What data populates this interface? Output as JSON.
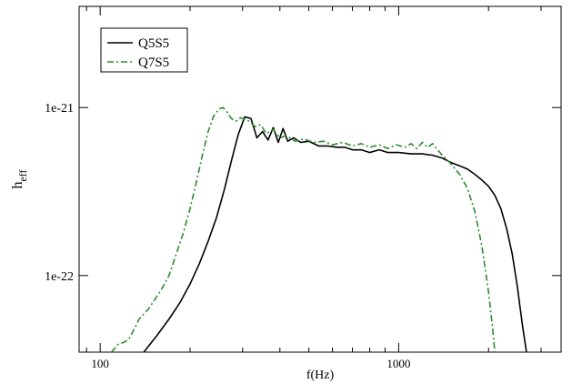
{
  "chart_data": {
    "type": "line",
    "title": "",
    "xlabel": "f(Hz)",
    "ylabel": {
      "main": "h",
      "sub": "eff"
    },
    "x_scale": "log",
    "y_scale": "log",
    "xlim": [
      85,
      3500
    ],
    "ylim": [
      3.5e-23,
      4e-21
    ],
    "x_ticks": [
      {
        "value": 100,
        "label": "100"
      },
      {
        "value": 1000,
        "label": "1000"
      }
    ],
    "y_ticks": [
      {
        "value": 1e-22,
        "label": "1e-22"
      },
      {
        "value": 1e-21,
        "label": "1e-21"
      }
    ],
    "grid": false,
    "legend_position": "top-left",
    "series": [
      {
        "name": "Q5S5",
        "color": "#000000",
        "dash": "solid",
        "points": [
          [
            140,
            3.5e-23
          ],
          [
            155,
            4.4e-23
          ],
          [
            170,
            5.5e-23
          ],
          [
            185,
            6.9e-23
          ],
          [
            200,
            8.9e-23
          ],
          [
            215,
            1.18e-22
          ],
          [
            230,
            1.6e-22
          ],
          [
            245,
            2.2e-22
          ],
          [
            260,
            3.2e-22
          ],
          [
            275,
            4.8e-22
          ],
          [
            290,
            6.9e-22
          ],
          [
            305,
            8.8e-22
          ],
          [
            320,
            8.6e-22
          ],
          [
            335,
            6.6e-22
          ],
          [
            350,
            7.2e-22
          ],
          [
            365,
            6.4e-22
          ],
          [
            380,
            7.6e-22
          ],
          [
            395,
            6.2e-22
          ],
          [
            410,
            7.5e-22
          ],
          [
            425,
            6.3e-22
          ],
          [
            445,
            6.6e-22
          ],
          [
            470,
            6.2e-22
          ],
          [
            500,
            6.3e-22
          ],
          [
            540,
            5.9e-22
          ],
          [
            580,
            5.9e-22
          ],
          [
            620,
            5.8e-22
          ],
          [
            660,
            5.8e-22
          ],
          [
            700,
            5.6e-22
          ],
          [
            750,
            5.6e-22
          ],
          [
            800,
            5.4e-22
          ],
          [
            860,
            5.6e-22
          ],
          [
            920,
            5.4e-22
          ],
          [
            1000,
            5.4e-22
          ],
          [
            1100,
            5.3e-22
          ],
          [
            1200,
            5.3e-22
          ],
          [
            1300,
            5.2e-22
          ],
          [
            1400,
            5e-22
          ],
          [
            1500,
            4.7e-22
          ],
          [
            1600,
            4.5e-22
          ],
          [
            1700,
            4.3e-22
          ],
          [
            1800,
            4e-22
          ],
          [
            1900,
            3.7e-22
          ],
          [
            2000,
            3.4e-22
          ],
          [
            2100,
            3e-22
          ],
          [
            2200,
            2.5e-22
          ],
          [
            2300,
            1.9e-22
          ],
          [
            2400,
            1.35e-22
          ],
          [
            2500,
            8.5e-23
          ],
          [
            2600,
            5e-23
          ],
          [
            2680,
            3.5e-23
          ]
        ]
      },
      {
        "name": "Q7S5",
        "color": "#2e8b2e",
        "dash": "dash-dot",
        "points": [
          [
            109,
            3.5e-23
          ],
          [
            115,
            3.9e-23
          ],
          [
            120,
            4e-23
          ],
          [
            125,
            4.2e-23
          ],
          [
            130,
            4.8e-23
          ],
          [
            135,
            5.5e-23
          ],
          [
            140,
            5.9e-23
          ],
          [
            145,
            6.3e-23
          ],
          [
            150,
            6.9e-23
          ],
          [
            160,
            8.2e-23
          ],
          [
            170,
            1e-22
          ],
          [
            180,
            1.35e-22
          ],
          [
            190,
            1.8e-22
          ],
          [
            200,
            2.5e-22
          ],
          [
            210,
            3.6e-22
          ],
          [
            220,
            5.2e-22
          ],
          [
            230,
            7.2e-22
          ],
          [
            240,
            8.9e-22
          ],
          [
            250,
            9.8e-22
          ],
          [
            258,
            1e-21
          ],
          [
            265,
            9.5e-22
          ],
          [
            275,
            8.6e-22
          ],
          [
            285,
            8.3e-22
          ],
          [
            295,
            8.7e-22
          ],
          [
            305,
            8.5e-22
          ],
          [
            315,
            8.3e-22
          ],
          [
            330,
            7.7e-22
          ],
          [
            345,
            7.9e-22
          ],
          [
            360,
            7e-22
          ],
          [
            380,
            7.4e-22
          ],
          [
            400,
            6.6e-22
          ],
          [
            420,
            6.8e-22
          ],
          [
            450,
            6.3e-22
          ],
          [
            480,
            6.5e-22
          ],
          [
            520,
            6.2e-22
          ],
          [
            560,
            6.3e-22
          ],
          [
            600,
            6e-22
          ],
          [
            650,
            6.2e-22
          ],
          [
            700,
            5.9e-22
          ],
          [
            750,
            6.1e-22
          ],
          [
            800,
            5.8e-22
          ],
          [
            860,
            6e-22
          ],
          [
            920,
            5.7e-22
          ],
          [
            980,
            6e-22
          ],
          [
            1050,
            5.8e-22
          ],
          [
            1100,
            6.1e-22
          ],
          [
            1150,
            5.7e-22
          ],
          [
            1200,
            6.2e-22
          ],
          [
            1250,
            5.8e-22
          ],
          [
            1300,
            6.1e-22
          ],
          [
            1350,
            5.6e-22
          ],
          [
            1400,
            5.2e-22
          ],
          [
            1450,
            4.9e-22
          ],
          [
            1500,
            4.6e-22
          ],
          [
            1600,
            4e-22
          ],
          [
            1700,
            3.3e-22
          ],
          [
            1800,
            2.4e-22
          ],
          [
            1900,
            1.5e-22
          ],
          [
            2000,
            8e-23
          ],
          [
            2060,
            5e-23
          ],
          [
            2100,
            3.5e-23
          ]
        ]
      }
    ]
  }
}
